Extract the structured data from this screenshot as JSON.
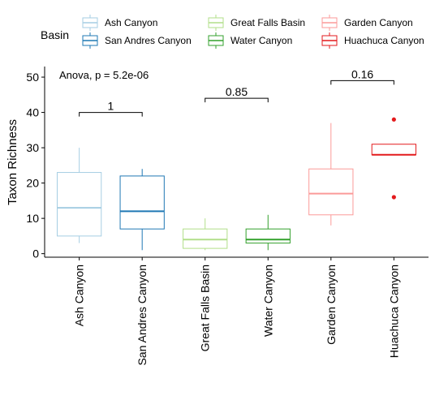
{
  "chart_data": {
    "type": "boxplot",
    "ylabel": "Taxon Richness",
    "ylim": [
      -1,
      53
    ],
    "yticks": [
      0,
      10,
      20,
      30,
      40,
      50
    ],
    "legend": {
      "title": "Basin",
      "placement": "top"
    },
    "annotation": "Anova, p = 5.2e-06",
    "categories": [
      "Ash Canyon",
      "San Andres Canyon",
      "Great Falls Basin",
      "Water Canyon",
      "Garden Canyon",
      "Huachuca Canyon"
    ],
    "series": [
      {
        "name": "Ash Canyon",
        "color": "#a6cee3",
        "min": 3,
        "q1": 5,
        "median": 13,
        "q3": 23,
        "max": 30,
        "outliers": []
      },
      {
        "name": "San Andres Canyon",
        "color": "#1f78b4",
        "min": 1,
        "q1": 7,
        "median": 12,
        "q3": 22,
        "max": 24,
        "outliers": []
      },
      {
        "name": "Great Falls Basin",
        "color": "#b2df8a",
        "min": 1,
        "q1": 1.5,
        "median": 4,
        "q3": 7,
        "max": 10,
        "outliers": []
      },
      {
        "name": "Water Canyon",
        "color": "#33a02c",
        "min": 1,
        "q1": 3,
        "median": 4,
        "q3": 7,
        "max": 11,
        "outliers": []
      },
      {
        "name": "Garden Canyon",
        "color": "#fb9a99",
        "min": 8,
        "q1": 11,
        "median": 17,
        "q3": 24,
        "max": 37,
        "outliers": []
      },
      {
        "name": "Huachuca Canyon",
        "color": "#e31a1c",
        "min": 28,
        "q1": 28,
        "median": 28,
        "q3": 31,
        "max": 31,
        "outliers": [
          38,
          16
        ]
      }
    ],
    "comparisons": [
      {
        "groups": [
          0,
          1
        ],
        "label": "1",
        "y": 40
      },
      {
        "groups": [
          2,
          3
        ],
        "label": "0.85",
        "y": 44
      },
      {
        "groups": [
          4,
          5
        ],
        "label": "0.16",
        "y": 49
      }
    ]
  }
}
